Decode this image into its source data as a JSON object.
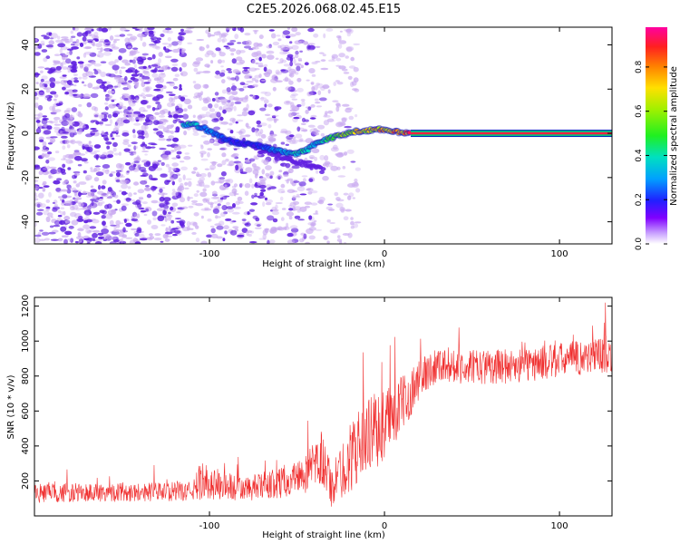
{
  "title": "C2E5.2026.068.02.45.E15",
  "colorbar": {
    "label": "Normalized spectral amplitude",
    "ticks": [
      "0.0",
      "0.2",
      "0.4",
      "0.6",
      "0.8"
    ],
    "tick_values": [
      0.0,
      0.2,
      0.4,
      0.6,
      0.8
    ],
    "range": [
      0,
      0.98
    ]
  },
  "colors": {
    "snr_line": "#f03030",
    "noise_purple": "#6020e0",
    "noise_light": "#c8a8f0",
    "trace_center": "#ff2040"
  },
  "chart_data": [
    {
      "type": "heatmap",
      "title": "C2E5.2026.068.02.45.E15",
      "xlabel": "Height of straight line (km)",
      "ylabel": "Frequency (Hz)",
      "xlim": [
        -200,
        130
      ],
      "ylim": [
        -50,
        48
      ],
      "xticks": [
        -100,
        0,
        100
      ],
      "xtick_labels": [
        "-100",
        "0",
        "100"
      ],
      "yticks": [
        -40,
        -20,
        0,
        20,
        40
      ],
      "ytick_labels": [
        "-40",
        "-20",
        "0",
        "20",
        "40"
      ],
      "trace": {
        "x": [
          -115,
          -110,
          -105,
          -100,
          -95,
          -90,
          -85,
          -80,
          -75,
          -70,
          -65,
          -60,
          -55,
          -50,
          -45,
          -40,
          -35,
          -30,
          -25,
          -20,
          -15,
          -10,
          -5,
          0,
          5,
          10,
          15,
          130
        ],
        "freq": [
          4,
          4,
          3,
          1,
          -1,
          -3,
          -4,
          -5,
          -5,
          -6,
          -7,
          -8,
          -9,
          -9,
          -8,
          -5,
          -3,
          -2,
          -1,
          0,
          1,
          1,
          2,
          1,
          1,
          0,
          0,
          0
        ],
        "amplitude": [
          0.4,
          0.45,
          0.35,
          0.35,
          0.3,
          0.25,
          0.2,
          0.2,
          0.2,
          0.25,
          0.3,
          0.35,
          0.4,
          0.45,
          0.5,
          0.4,
          0.5,
          0.6,
          0.7,
          0.75,
          0.8,
          0.8,
          0.85,
          0.9,
          0.95,
          0.95,
          0.98,
          0.98
        ]
      },
      "lower_branch": {
        "x": [
          -75,
          -70,
          -65,
          -60,
          -55,
          -50,
          -45,
          -40,
          -35
        ],
        "freq": [
          -6,
          -8,
          -9,
          -10,
          -12,
          -13,
          -14,
          -15,
          -17
        ]
      }
    },
    {
      "type": "line",
      "xlabel": "Height of straight line (km)",
      "ylabel": "SNR (10 * v/v)",
      "xlim": [
        -200,
        130
      ],
      "ylim": [
        0,
        1250
      ],
      "xticks": [
        -100,
        0,
        100
      ],
      "xtick_labels": [
        "-100",
        "0",
        "100"
      ],
      "yticks": [
        200,
        400,
        600,
        800,
        1000,
        1200
      ],
      "ytick_labels": [
        "200",
        "400",
        "600",
        "800",
        "1000",
        "1200"
      ],
      "envelope": {
        "x": [
          -200,
          -110,
          -105,
          -80,
          -60,
          -45,
          -35,
          -30,
          -20,
          -10,
          0,
          10,
          20,
          30,
          50,
          80,
          100,
          130
        ],
        "mean": [
          130,
          140,
          200,
          150,
          190,
          240,
          320,
          160,
          330,
          460,
          520,
          640,
          780,
          870,
          850,
          860,
          890,
          930
        ],
        "spread": [
          55,
          55,
          110,
          70,
          90,
          110,
          170,
          120,
          200,
          210,
          220,
          160,
          120,
          100,
          100,
          100,
          100,
          110
        ]
      }
    }
  ]
}
